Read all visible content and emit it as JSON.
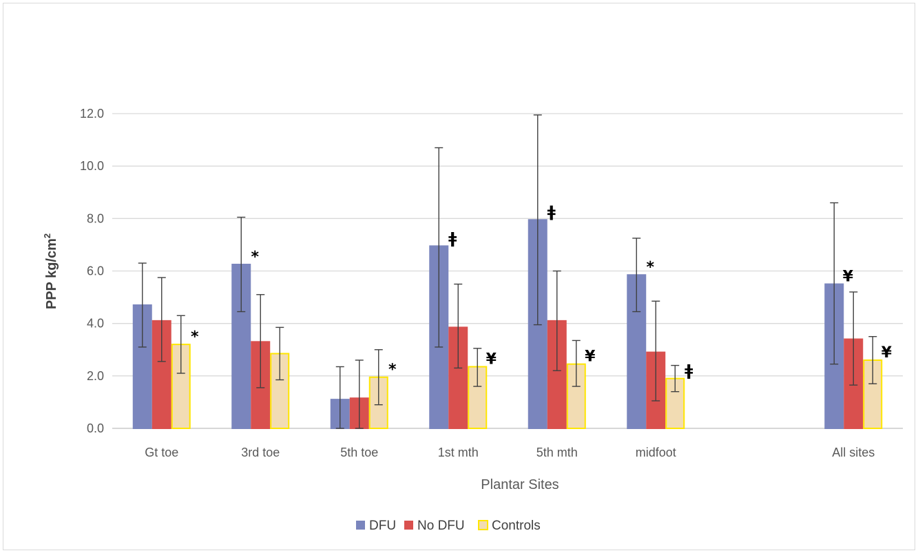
{
  "chart_data": {
    "type": "bar",
    "title": "",
    "xlabel": "Plantar Sites",
    "ylabel_main": "PPP kg/cm",
    "ylabel_sup": "2",
    "ylim": [
      0,
      12
    ],
    "yticks": [
      "0.0",
      "2.0",
      "4.0",
      "6.0",
      "8.0",
      "10.0",
      "12.0"
    ],
    "ytick_values": [
      0,
      2,
      4,
      6,
      8,
      10,
      12
    ],
    "grid": true,
    "legend_position": "bottom",
    "categories": [
      "Gt toe",
      "3rd toe",
      "5th toe",
      "1st mth",
      "5th mth",
      "midfoot",
      "",
      "All sites"
    ],
    "series": [
      {
        "name": "DFU",
        "color": "#7a85bd",
        "border": "#7a85bd",
        "values": [
          4.7,
          6.25,
          1.1,
          6.95,
          7.95,
          5.85,
          null,
          5.5
        ],
        "err_high": [
          6.3,
          8.05,
          2.35,
          10.7,
          11.95,
          7.25,
          null,
          8.6
        ],
        "err_low": [
          3.1,
          4.45,
          0.0,
          3.1,
          3.95,
          4.45,
          null,
          2.45
        ],
        "markers": [
          "",
          "*",
          "",
          "ǂ",
          "ǂ",
          "*",
          "",
          "¥"
        ]
      },
      {
        "name": "No DFU",
        "color": "#d9504e",
        "border": "#d9504e",
        "values": [
          4.1,
          3.3,
          1.15,
          3.85,
          4.1,
          2.9,
          null,
          3.4
        ],
        "err_high": [
          5.75,
          5.1,
          2.6,
          5.5,
          6.0,
          4.85,
          null,
          5.2
        ],
        "err_low": [
          2.55,
          1.55,
          0.0,
          2.3,
          2.2,
          1.05,
          null,
          1.65
        ],
        "markers": [
          "",
          "",
          "",
          "",
          "",
          "",
          "",
          ""
        ]
      },
      {
        "name": "Controls",
        "color": "#f2dcb3",
        "border": "#ffe600",
        "values": [
          3.2,
          2.85,
          1.95,
          2.35,
          2.45,
          1.9,
          null,
          2.6
        ],
        "err_high": [
          4.3,
          3.85,
          3.0,
          3.05,
          3.35,
          2.4,
          null,
          3.5
        ],
        "err_low": [
          2.1,
          1.85,
          0.9,
          1.6,
          1.6,
          1.4,
          null,
          1.7
        ],
        "markers": [
          "*",
          "",
          "*",
          "¥",
          "¥",
          "ǂ",
          "",
          "¥"
        ]
      }
    ]
  }
}
